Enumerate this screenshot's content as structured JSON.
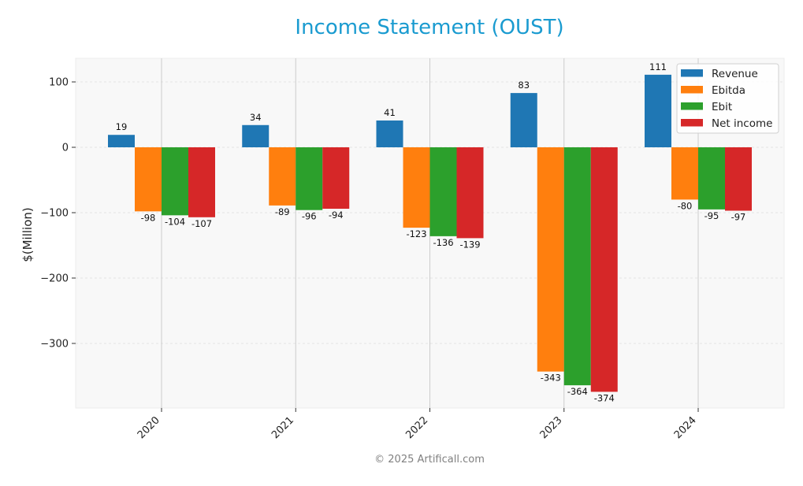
{
  "title": "Income Statement (OUST)",
  "footer": "© 2025 Artificall.com",
  "colors": {
    "title": "#1a9bd0",
    "Revenue": "#1f77b4",
    "Ebitda": "#ff7f0e",
    "Ebit": "#2ca02c",
    "Net income": "#d62728",
    "plot_bg": "#f8f8f8"
  },
  "chart_data": {
    "type": "bar",
    "title": "Income Statement (OUST)",
    "xlabel": "",
    "ylabel": "$(Million)",
    "categories": [
      "2020",
      "2021",
      "2022",
      "2023",
      "2024"
    ],
    "series": [
      {
        "name": "Revenue",
        "values": [
          19,
          34,
          41,
          83,
          111
        ]
      },
      {
        "name": "Ebitda",
        "values": [
          -98,
          -89,
          -123,
          -343,
          -80
        ]
      },
      {
        "name": "Ebit",
        "values": [
          -104,
          -96,
          -136,
          -364,
          -95
        ]
      },
      {
        "name": "Net income",
        "values": [
          -107,
          -94,
          -139,
          -374,
          -97
        ]
      }
    ],
    "yticks": [
      100,
      0,
      -100,
      -200,
      -300
    ],
    "ytick_labels": [
      "100",
      "0",
      "−100",
      "−200",
      "−300"
    ],
    "ylim": [
      -399,
      136
    ],
    "grid": true,
    "legend_position": "upper right"
  }
}
